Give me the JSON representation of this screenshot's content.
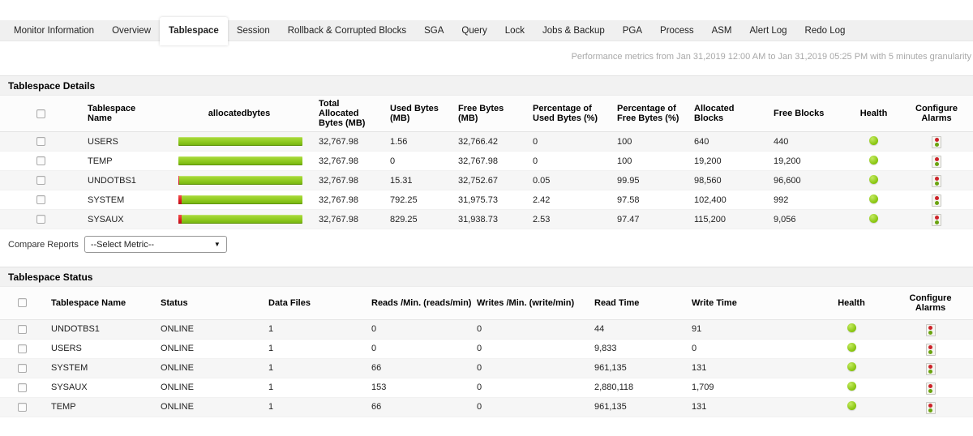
{
  "tabs": {
    "items": [
      {
        "label": "Monitor Information",
        "active": false
      },
      {
        "label": "Overview",
        "active": false
      },
      {
        "label": "Tablespace",
        "active": true
      },
      {
        "label": "Session",
        "active": false
      },
      {
        "label": "Rollback & Corrupted Blocks",
        "active": false
      },
      {
        "label": "SGA",
        "active": false
      },
      {
        "label": "Query",
        "active": false
      },
      {
        "label": "Lock",
        "active": false
      },
      {
        "label": "Jobs & Backup",
        "active": false
      },
      {
        "label": "PGA",
        "active": false
      },
      {
        "label": "Process",
        "active": false
      },
      {
        "label": "ASM",
        "active": false
      },
      {
        "label": "Alert Log",
        "active": false
      },
      {
        "label": "Redo Log",
        "active": false
      }
    ]
  },
  "meta": {
    "performance_text": "Performance metrics from Jan 31,2019 12:00 AM to Jan 31,2019 05:25 PM with 5 minutes granularity"
  },
  "details": {
    "title": "Tablespace Details",
    "columns": {
      "name": "Tablespace Name",
      "allocatedbytes": "allocatedbytes",
      "total": "Total Allocated Bytes  (MB)",
      "used": "Used Bytes  (MB)",
      "free": "Free Bytes  (MB)",
      "pct_used": "Percentage of Used Bytes  (%)",
      "pct_free": "Percentage of Free Bytes  (%)",
      "alloc_blocks": "Allocated Blocks",
      "free_blocks": "Free Blocks",
      "health": "Health",
      "configure": "Configure Alarms"
    },
    "rows": [
      {
        "name": "USERS",
        "total": "32,767.98",
        "used": "1.56",
        "free": "32,766.42",
        "pct_used": "0",
        "pct_free": "100",
        "alloc_blocks": "640",
        "free_blocks": "440",
        "alloc_blocks_underline": true,
        "health": "good"
      },
      {
        "name": "TEMP",
        "total": "32,767.98",
        "used": "0",
        "free": "32,767.98",
        "pct_used": "0",
        "pct_free": "100",
        "alloc_blocks": "19,200",
        "free_blocks": "19,200",
        "alloc_blocks_underline": false,
        "health": "good"
      },
      {
        "name": "UNDOTBS1",
        "total": "32,767.98",
        "used": "15.31",
        "free": "32,752.67",
        "pct_used": "0.05",
        "pct_free": "99.95",
        "alloc_blocks": "98,560",
        "free_blocks": "96,600",
        "alloc_blocks_underline": false,
        "health": "good"
      },
      {
        "name": "SYSTEM",
        "total": "32,767.98",
        "used": "792.25",
        "free": "31,975.73",
        "pct_used": "2.42",
        "pct_free": "97.58",
        "alloc_blocks": "102,400",
        "free_blocks": "992",
        "alloc_blocks_underline": false,
        "health": "good"
      },
      {
        "name": "SYSAUX",
        "total": "32,767.98",
        "used": "829.25",
        "free": "31,938.73",
        "pct_used": "2.53",
        "pct_free": "97.47",
        "alloc_blocks": "115,200",
        "free_blocks": "9,056",
        "alloc_blocks_underline": false,
        "health": "good"
      }
    ]
  },
  "compare": {
    "label": "Compare Reports",
    "selected_value": "--Select Metric--",
    "arrow": "▼"
  },
  "status": {
    "title": "Tablespace Status",
    "columns": {
      "name": "Tablespace Name",
      "status": "Status",
      "data_files": "Data Files",
      "reads": "Reads /Min.  (reads/min)",
      "writes": "Writes /Min.  (write/min)",
      "read_time": "Read Time",
      "write_time": "Write Time",
      "health": "Health",
      "configure": "Configure Alarms"
    },
    "rows": [
      {
        "name": "UNDOTBS1",
        "status": "ONLINE",
        "data_files": "1",
        "reads": "0",
        "writes": "0",
        "read_time": "44",
        "write_time": "91",
        "health": "good"
      },
      {
        "name": "USERS",
        "status": "ONLINE",
        "data_files": "1",
        "reads": "0",
        "writes": "0",
        "read_time": "9,833",
        "write_time": "0",
        "health": "good"
      },
      {
        "name": "SYSTEM",
        "status": "ONLINE",
        "data_files": "1",
        "reads": "66",
        "writes": "0",
        "read_time": "961,135",
        "write_time": "131",
        "health": "good"
      },
      {
        "name": "SYSAUX",
        "status": "ONLINE",
        "data_files": "1",
        "reads": "153",
        "writes": "0",
        "read_time": "2,880,118",
        "write_time": "1,709",
        "health": "good"
      },
      {
        "name": "TEMP",
        "status": "ONLINE",
        "data_files": "1",
        "reads": "66",
        "writes": "0",
        "read_time": "961,135",
        "write_time": "131",
        "health": "good"
      }
    ]
  },
  "colors": {
    "bar_green": "#8ec91e",
    "bar_red": "#e01b23",
    "health_green": "#86c40c",
    "alarm_red": "#cc2229",
    "alarm_green": "#6aa30f",
    "tabbar_bg": "#f0f0f0",
    "section_header_bg": "#f2f2f2"
  }
}
